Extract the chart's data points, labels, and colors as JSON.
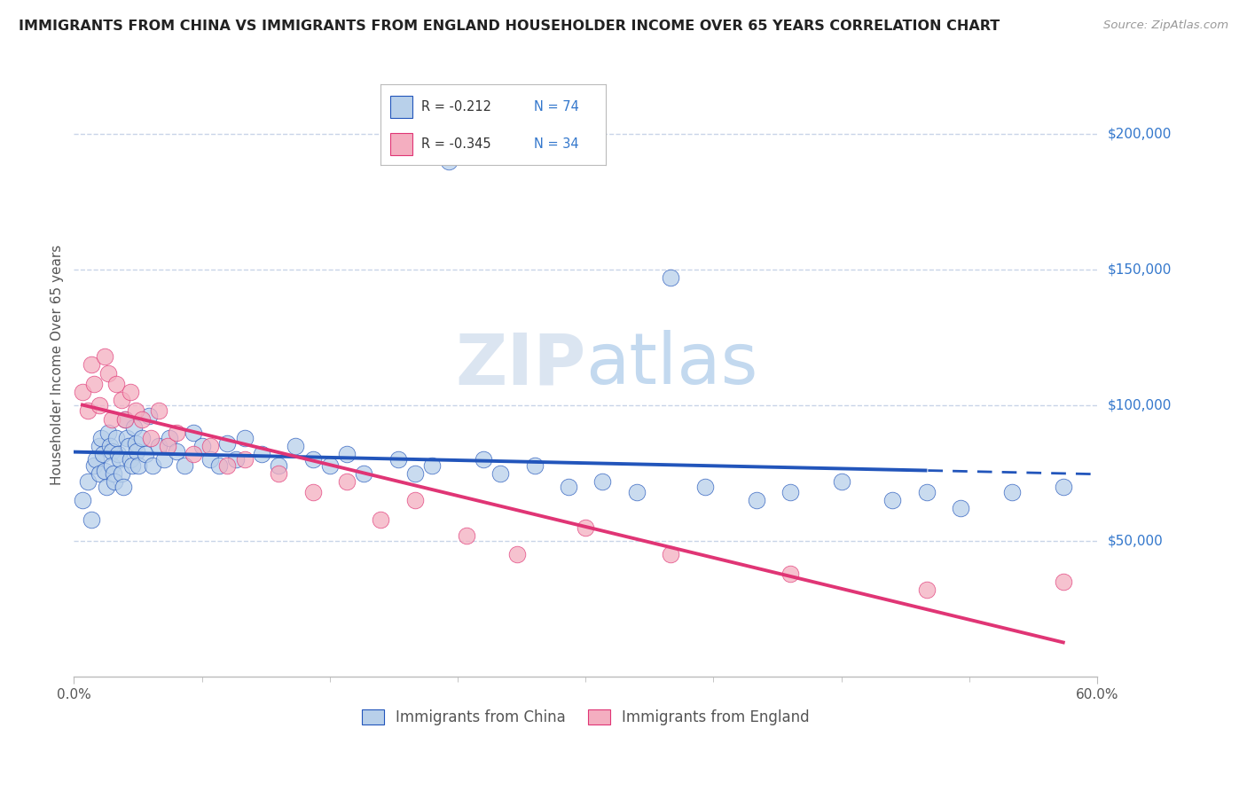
{
  "title": "IMMIGRANTS FROM CHINA VS IMMIGRANTS FROM ENGLAND HOUSEHOLDER INCOME OVER 65 YEARS CORRELATION CHART",
  "source": "Source: ZipAtlas.com",
  "ylabel": "Householder Income Over 65 years",
  "xlim": [
    0.0,
    0.6
  ],
  "ylim": [
    0,
    230000
  ],
  "background_color": "#ffffff",
  "watermark_zip": "ZIP",
  "watermark_atlas": "atlas",
  "legend": {
    "china_r": "R = -0.212",
    "china_n": "N = 74",
    "england_r": "R = -0.345",
    "england_n": "N = 34",
    "china_color": "#b8d0ea",
    "england_color": "#f4aec0"
  },
  "china_line_color": "#2255bb",
  "england_line_color": "#e03575",
  "china_dot_color": "#b8d0ea",
  "china_dot_edge": "#2255bb",
  "england_dot_color": "#f4aec0",
  "england_dot_edge": "#e03575",
  "grid_color": "#c8d4e8",
  "axis_color": "#bbbbbb",
  "title_color": "#222222",
  "ylabel_color": "#555555",
  "ytick_color": "#3377cc",
  "xtick_color": "#555555",
  "china_x": [
    0.005,
    0.008,
    0.01,
    0.012,
    0.013,
    0.015,
    0.015,
    0.016,
    0.017,
    0.018,
    0.019,
    0.02,
    0.021,
    0.022,
    0.022,
    0.023,
    0.024,
    0.025,
    0.026,
    0.027,
    0.028,
    0.029,
    0.03,
    0.031,
    0.032,
    0.033,
    0.034,
    0.035,
    0.036,
    0.037,
    0.038,
    0.04,
    0.042,
    0.044,
    0.046,
    0.05,
    0.053,
    0.056,
    0.06,
    0.065,
    0.07,
    0.075,
    0.08,
    0.085,
    0.09,
    0.095,
    0.1,
    0.11,
    0.12,
    0.13,
    0.14,
    0.15,
    0.16,
    0.17,
    0.19,
    0.2,
    0.21,
    0.22,
    0.24,
    0.25,
    0.27,
    0.29,
    0.31,
    0.33,
    0.35,
    0.37,
    0.4,
    0.42,
    0.45,
    0.48,
    0.5,
    0.52,
    0.55,
    0.58
  ],
  "china_y": [
    65000,
    72000,
    58000,
    78000,
    80000,
    85000,
    75000,
    88000,
    82000,
    76000,
    70000,
    90000,
    85000,
    83000,
    78000,
    75000,
    72000,
    88000,
    82000,
    80000,
    75000,
    70000,
    95000,
    88000,
    85000,
    80000,
    78000,
    92000,
    86000,
    83000,
    78000,
    88000,
    82000,
    96000,
    78000,
    85000,
    80000,
    88000,
    83000,
    78000,
    90000,
    85000,
    80000,
    78000,
    86000,
    80000,
    88000,
    82000,
    78000,
    85000,
    80000,
    78000,
    82000,
    75000,
    80000,
    75000,
    78000,
    190000,
    80000,
    75000,
    78000,
    70000,
    72000,
    68000,
    147000,
    70000,
    65000,
    68000,
    72000,
    65000,
    68000,
    62000,
    68000,
    70000
  ],
  "england_x": [
    0.005,
    0.008,
    0.01,
    0.012,
    0.015,
    0.018,
    0.02,
    0.022,
    0.025,
    0.028,
    0.03,
    0.033,
    0.036,
    0.04,
    0.045,
    0.05,
    0.055,
    0.06,
    0.07,
    0.08,
    0.09,
    0.1,
    0.12,
    0.14,
    0.16,
    0.18,
    0.2,
    0.23,
    0.26,
    0.3,
    0.35,
    0.42,
    0.5,
    0.58
  ],
  "england_y": [
    105000,
    98000,
    115000,
    108000,
    100000,
    118000,
    112000,
    95000,
    108000,
    102000,
    95000,
    105000,
    98000,
    95000,
    88000,
    98000,
    85000,
    90000,
    82000,
    85000,
    78000,
    80000,
    75000,
    68000,
    72000,
    58000,
    65000,
    52000,
    45000,
    55000,
    45000,
    38000,
    32000,
    35000
  ]
}
